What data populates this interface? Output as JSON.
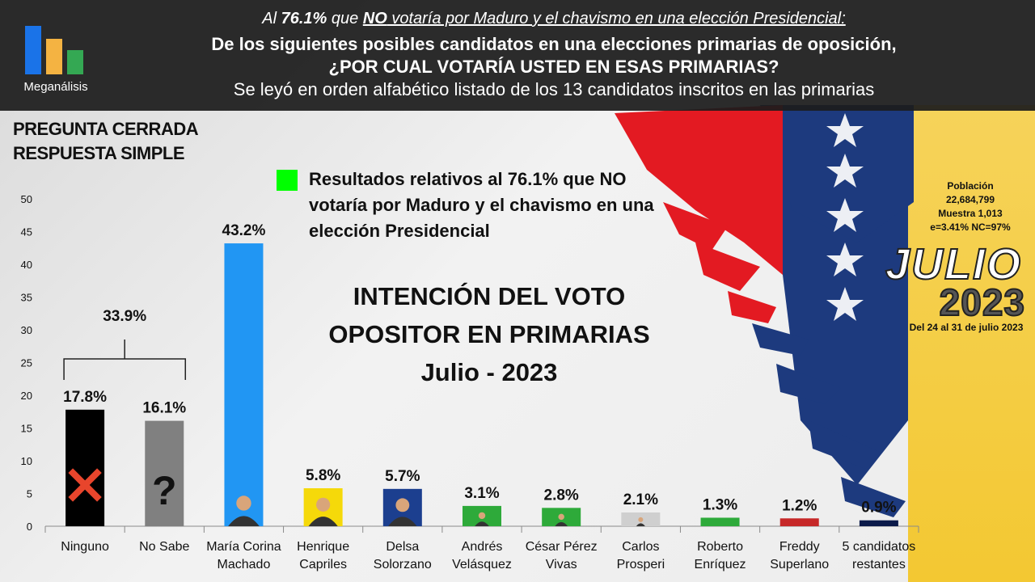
{
  "header": {
    "logo_name": "Meganálisis",
    "line1_pre": "Al ",
    "line1_pct": "76.1%",
    "line1_mid": " que ",
    "line1_no": "NO",
    "line1_post": " votaría por Maduro y el chavismo en una elección Presidencial:",
    "line2": "De los siguientes posibles candidatos en una elecciones primarias de oposición,",
    "line3": "¿POR CUAL VOTARÍA USTED EN ESAS PRIMARIAS?",
    "line4": "Se leyó en orden alfabético listado de los 13 candidatos inscritos en las primarias"
  },
  "question_type": {
    "line1": "PREGUNTA  CERRADA",
    "line2": "RESPUESTA SIMPLE"
  },
  "legend": {
    "text": "Resultados relativos al 76.1% que NO votaría por Maduro y el chavismo en una elección Presidencial",
    "color": "#00ff00"
  },
  "center_title": {
    "line1": "INTENCIÓN DEL VOTO",
    "line2": "OPOSITOR EN PRIMARIAS",
    "line3": "Julio - 2023"
  },
  "sample_info": {
    "line1": "Población",
    "line2": "22,684,799",
    "line3": "Muestra 1,013",
    "line4": "e=3.41%  NC=97%"
  },
  "badge": {
    "month": "JULIO",
    "year": "2023",
    "dates": "Del 24 al 31 de julio 2023"
  },
  "chart_data": {
    "type": "bar",
    "ylim": [
      0,
      50
    ],
    "yticks": [
      0,
      5,
      10,
      15,
      20,
      25,
      30,
      35,
      40,
      45,
      50
    ],
    "categories": [
      [
        "Ninguno"
      ],
      [
        "No Sabe"
      ],
      [
        "María Corina",
        "Machado"
      ],
      [
        "Henrique",
        "Capriles"
      ],
      [
        "Delsa",
        "Solorzano"
      ],
      [
        "Andrés",
        "Velásquez"
      ],
      [
        "César Pérez",
        "Vivas"
      ],
      [
        "Carlos",
        "Prosperi"
      ],
      [
        "Roberto",
        "Enríquez"
      ],
      [
        "Freddy",
        "Superlano"
      ],
      [
        "5 candidatos",
        "restantes"
      ]
    ],
    "values": [
      17.8,
      16.1,
      43.2,
      5.8,
      5.7,
      3.1,
      2.8,
      2.1,
      1.3,
      1.2,
      0.9
    ],
    "labels": [
      "17.8%",
      "16.1%",
      "43.2%",
      "5.8%",
      "5.7%",
      "3.1%",
      "2.8%",
      "2.1%",
      "1.3%",
      "1.2%",
      "0.9%"
    ],
    "colors": [
      "#000000",
      "#808080",
      "#2196f3",
      "#f5d90a",
      "#1c3f8f",
      "#2eaa3a",
      "#2eaa3a",
      "#cfcfcf",
      "#2eaa3a",
      "#c62828",
      "#0b1a4a"
    ],
    "bar_icons": [
      "x-mark",
      "question-mark",
      "photo",
      "photo",
      "photo",
      "photo",
      "photo",
      "photo",
      "photo",
      "photo",
      ""
    ],
    "bracket": {
      "label": "33.9%",
      "from": 0,
      "to": 1
    }
  }
}
